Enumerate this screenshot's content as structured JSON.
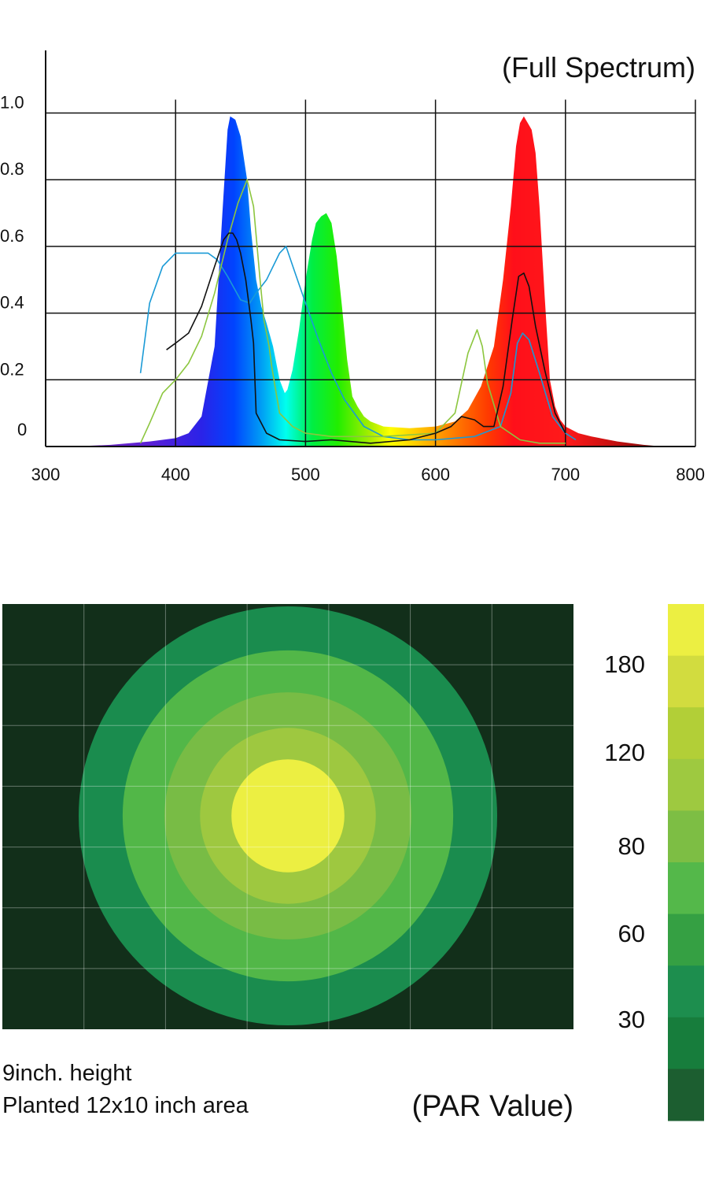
{
  "chart_data": [
    {
      "type": "area",
      "title": "(Full Spectrum)",
      "xlim": [
        300,
        800
      ],
      "ylim": [
        0,
        1.04
      ],
      "x_ticks": [
        "300",
        "400",
        "500",
        "600",
        "700",
        "800"
      ],
      "y_ticks": [
        {
          "value": 0,
          "label": "0"
        },
        {
          "value": 0.2,
          "label": "0.2"
        },
        {
          "value": 0.4,
          "label": "0.4"
        },
        {
          "value": 0.6,
          "label": "0.6"
        },
        {
          "value": 0.8,
          "label": "0.8"
        },
        {
          "value": 1.0,
          "label": "1.0"
        }
      ],
      "grid": true,
      "spectrum": {
        "x": [
          320,
          350,
          380,
          400,
          410,
          420,
          430,
          436,
          440,
          442,
          446,
          450,
          455,
          458,
          462,
          466,
          470,
          475,
          480,
          484,
          486,
          490,
          495,
          500,
          505,
          508,
          512,
          516,
          520,
          524,
          528,
          532,
          536,
          540,
          545,
          550,
          560,
          580,
          600,
          615,
          625,
          635,
          645,
          652,
          658,
          662,
          665,
          668,
          671,
          674,
          677,
          680,
          684,
          688,
          692,
          696,
          700,
          710,
          720,
          740,
          760,
          775
        ],
        "y": [
          0.0,
          0.005,
          0.015,
          0.025,
          0.04,
          0.09,
          0.3,
          0.7,
          0.95,
          0.99,
          0.98,
          0.93,
          0.8,
          0.65,
          0.5,
          0.42,
          0.37,
          0.3,
          0.2,
          0.16,
          0.17,
          0.23,
          0.35,
          0.5,
          0.62,
          0.67,
          0.69,
          0.7,
          0.67,
          0.57,
          0.42,
          0.26,
          0.15,
          0.12,
          0.09,
          0.075,
          0.06,
          0.055,
          0.06,
          0.075,
          0.11,
          0.18,
          0.3,
          0.5,
          0.72,
          0.9,
          0.97,
          0.99,
          0.97,
          0.95,
          0.88,
          0.72,
          0.45,
          0.2,
          0.12,
          0.08,
          0.06,
          0.04,
          0.03,
          0.015,
          0.005,
          0.0
        ]
      },
      "curves": [
        {
          "color": "#1a9ad6",
          "x": [
            373,
            380,
            390,
            400,
            412,
            425,
            432,
            440,
            450,
            457,
            462,
            470,
            480,
            485,
            492,
            500,
            510,
            520,
            530,
            545,
            560,
            580,
            600,
            630,
            650,
            658,
            663,
            667,
            672,
            680,
            690,
            700,
            708
          ],
          "y": [
            0.22,
            0.43,
            0.54,
            0.58,
            0.58,
            0.58,
            0.56,
            0.51,
            0.44,
            0.43,
            0.46,
            0.5,
            0.58,
            0.6,
            0.52,
            0.43,
            0.32,
            0.22,
            0.14,
            0.06,
            0.03,
            0.02,
            0.02,
            0.03,
            0.06,
            0.16,
            0.31,
            0.34,
            0.32,
            0.22,
            0.09,
            0.04,
            0.02
          ]
        },
        {
          "color": "#8cc63f",
          "x": [
            373,
            380,
            390,
            400,
            410,
            420,
            430,
            440,
            448,
            455,
            460,
            465,
            468,
            470,
            472,
            474,
            480,
            490,
            500,
            520,
            560,
            600,
            615,
            625,
            632,
            636,
            640,
            650,
            665,
            680,
            700
          ],
          "y": [
            0.01,
            0.07,
            0.16,
            0.2,
            0.25,
            0.33,
            0.46,
            0.62,
            0.73,
            0.8,
            0.72,
            0.5,
            0.38,
            0.34,
            0.3,
            0.24,
            0.1,
            0.06,
            0.04,
            0.03,
            0.03,
            0.04,
            0.1,
            0.28,
            0.35,
            0.3,
            0.19,
            0.06,
            0.02,
            0.01,
            0.01
          ]
        },
        {
          "color": "#111111",
          "x": [
            393,
            400,
            410,
            420,
            430,
            437,
            441,
            444,
            447,
            450,
            454,
            458,
            460,
            462,
            470,
            480,
            500,
            520,
            550,
            580,
            600,
            612,
            620,
            630,
            637,
            645,
            652,
            659,
            664,
            668,
            672,
            677,
            684,
            692,
            700
          ],
          "y": [
            0.29,
            0.31,
            0.34,
            0.42,
            0.54,
            0.62,
            0.64,
            0.64,
            0.62,
            0.58,
            0.5,
            0.38,
            0.31,
            0.1,
            0.04,
            0.02,
            0.015,
            0.02,
            0.01,
            0.02,
            0.04,
            0.06,
            0.09,
            0.08,
            0.06,
            0.06,
            0.18,
            0.38,
            0.51,
            0.52,
            0.48,
            0.36,
            0.23,
            0.1,
            0.04
          ]
        }
      ]
    },
    {
      "type": "heatmap",
      "title": "(PAR Value)",
      "colorbar": {
        "colors": [
          "#ecef42",
          "#d2dc3f",
          "#b2cf37",
          "#9ec940",
          "#7dbe44",
          "#54b84a",
          "#35a043",
          "#1d8e4e",
          "#177d3c",
          "#1c5e30"
        ],
        "labels": [
          "180",
          "120",
          "80",
          "60",
          "30"
        ]
      },
      "rings": [
        {
          "radius": 1.0,
          "color": "#1a8c4e"
        },
        {
          "radius": 0.79,
          "color": "#52b748"
        },
        {
          "radius": 0.59,
          "color": "#78bc45"
        },
        {
          "radius": 0.42,
          "color": "#9ec840"
        },
        {
          "radius": 0.27,
          "color": "#ecef42"
        }
      ],
      "background": "#122f1a",
      "grid_columns": 7,
      "grid_rows": 7
    }
  ],
  "captions": {
    "line1": "9inch. height",
    "line2": "Planted 12x10 inch area"
  }
}
